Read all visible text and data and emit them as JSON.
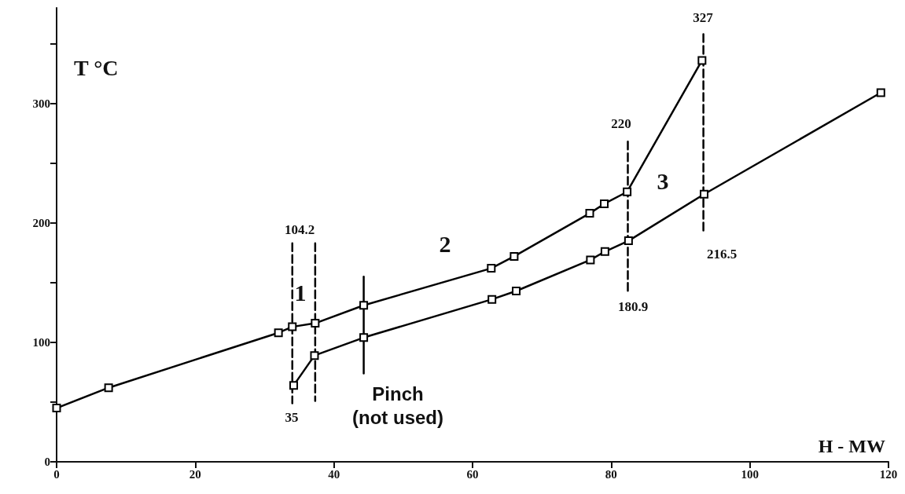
{
  "chart_data": {
    "type": "line",
    "xlabel": "H - MW",
    "ylabel": "T °C",
    "xlim": [
      0,
      120
    ],
    "xticks": [
      0,
      20,
      40,
      60,
      80,
      100,
      120
    ],
    "ylim": [
      0,
      380
    ],
    "yticks": [
      0,
      {
        "value": 50,
        "label": null
      },
      100,
      {
        "value": 150,
        "label": null
      },
      200,
      {
        "value": 250,
        "label": null
      },
      300,
      {
        "value": 350,
        "label": null
      }
    ],
    "grid": false,
    "marker": "square",
    "line_style": "solid",
    "series": [
      {
        "color": "#000000",
        "x": [
          0,
          7.5,
          32,
          34,
          37.3,
          44.3,
          62.7,
          66,
          76.9,
          79,
          82.3,
          93.1
        ],
        "values": [
          45,
          62,
          108,
          113,
          116,
          131,
          162,
          172,
          208,
          216,
          226,
          336
        ]
      },
      {
        "color": "#000000",
        "x": [
          34.2,
          37.2,
          44.3,
          62.8,
          66.3,
          77,
          79.1,
          82.5,
          93.4,
          118.9
        ],
        "values": [
          64,
          89,
          104,
          136,
          143,
          169,
          176,
          185,
          224,
          309
        ]
      },
      {
        "color": "#000000",
        "marker": "none",
        "line_style": "dashed",
        "x": [
          34,
          34
        ],
        "values": [
          183,
          49
        ]
      },
      {
        "color": "#000000",
        "marker": "none",
        "line_style": "dashed",
        "x": [
          37.3,
          37.3
        ],
        "values": [
          183,
          51
        ]
      },
      {
        "color": "#000000",
        "marker": "none",
        "line_style": "dashed",
        "x": [
          82.4,
          82.4
        ],
        "values": [
          268,
          142
        ]
      },
      {
        "color": "#000000",
        "marker": "none",
        "line_style": "dashed",
        "x": [
          93.3,
          93.3
        ],
        "values": [
          358,
          193
        ]
      },
      {
        "color": "#000000",
        "marker": "none",
        "line_style": "solid",
        "x": [
          44.3,
          44.3
        ],
        "values": [
          155,
          74
        ]
      }
    ],
    "annotations": [
      "104.2",
      "35",
      "1",
      "2",
      "3",
      "220",
      "327",
      "180.9",
      "216.5",
      "Pinch\n(not used)"
    ]
  }
}
